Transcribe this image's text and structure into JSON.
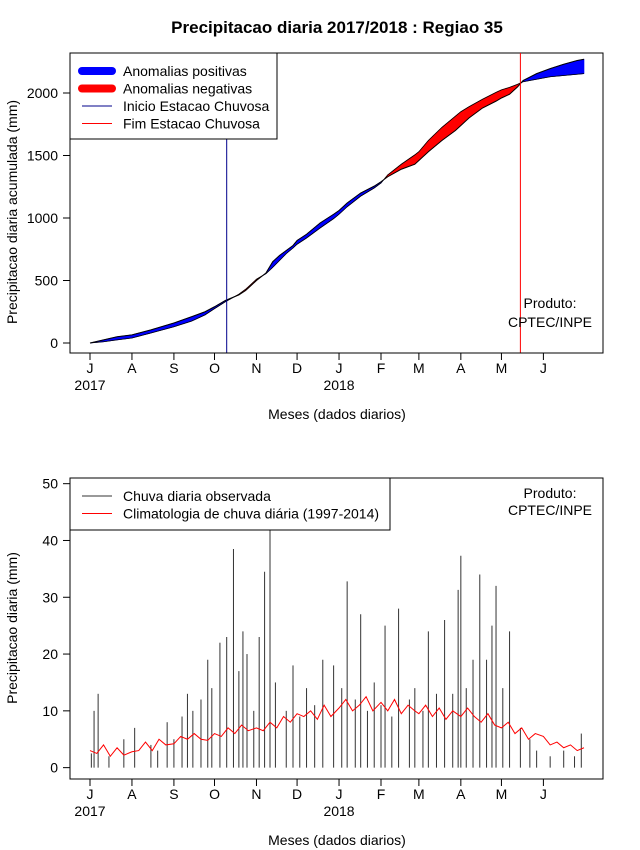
{
  "title": "Precipitacao diaria 2017/2018 : Regiao 35",
  "colors": {
    "positive": "#0000ff",
    "negative": "#ff0000",
    "start_line": "#00008b",
    "end_line": "#ff0000",
    "observed": "#333333",
    "climatology": "#ff0000"
  },
  "chart_data": [
    {
      "type": "area",
      "name": "accumulated",
      "ylabel": "Precipitacao diaria acumulada (mm)",
      "xlabel": "Meses (dados diarios)",
      "xlim": [
        0,
        365
      ],
      "ylim": [
        -80,
        2320
      ],
      "yticks": [
        0,
        500,
        1000,
        1500,
        2000
      ],
      "month_ticks": [
        {
          "label": "J",
          "day": 0
        },
        {
          "label": "A",
          "day": 31
        },
        {
          "label": "S",
          "day": 62
        },
        {
          "label": "O",
          "day": 92
        },
        {
          "label": "N",
          "day": 123
        },
        {
          "label": "D",
          "day": 153
        },
        {
          "label": "J",
          "day": 184
        },
        {
          "label": "F",
          "day": 215
        },
        {
          "label": "M",
          "day": 243
        },
        {
          "label": "A",
          "day": 274
        },
        {
          "label": "M",
          "day": 304
        },
        {
          "label": "J",
          "day": 335
        }
      ],
      "year_labels": [
        {
          "label": "2017",
          "day": 0
        },
        {
          "label": "2018",
          "day": 184
        }
      ],
      "legend": [
        {
          "label": "Anomalias positivas",
          "style": "thick",
          "color": "#0000ff"
        },
        {
          "label": "Anomalias negativas",
          "style": "thick",
          "color": "#ff0000"
        },
        {
          "label": "Inicio Estacao Chuvosa",
          "style": "thin",
          "color": "#00008b"
        },
        {
          "label": "Fim Estacao Chuvosa",
          "style": "thin",
          "color": "#ff0000"
        }
      ],
      "annotation": [
        "Produto:",
        "CPTEC/INPE"
      ],
      "season_start_day": 101,
      "season_end_day": 318,
      "observed": {
        "x": [
          0,
          10,
          20,
          31,
          45,
          62,
          75,
          85,
          92,
          100,
          110,
          115,
          120,
          123,
          130,
          135,
          140,
          145,
          150,
          153,
          160,
          170,
          180,
          184,
          190,
          200,
          210,
          215,
          220,
          230,
          240,
          243,
          250,
          260,
          270,
          274,
          280,
          290,
          300,
          304,
          310,
          316,
          320,
          330,
          335,
          340,
          350,
          360,
          365
        ],
        "y": [
          0,
          25,
          50,
          65,
          105,
          160,
          210,
          250,
          290,
          340,
          385,
          420,
          470,
          500,
          560,
          650,
          700,
          740,
          780,
          820,
          870,
          960,
          1030,
          1060,
          1120,
          1200,
          1255,
          1290,
          1330,
          1390,
          1430,
          1460,
          1530,
          1620,
          1700,
          1740,
          1800,
          1880,
          1935,
          1960,
          1990,
          2050,
          2100,
          2155,
          2175,
          2195,
          2230,
          2260,
          2270
        ]
      },
      "climatology": {
        "x": [
          0,
          10,
          20,
          31,
          45,
          62,
          75,
          85,
          92,
          100,
          110,
          115,
          120,
          123,
          130,
          135,
          140,
          145,
          150,
          153,
          160,
          170,
          180,
          184,
          190,
          200,
          210,
          215,
          220,
          230,
          240,
          243,
          250,
          260,
          270,
          274,
          280,
          290,
          300,
          304,
          310,
          316,
          320,
          330,
          335,
          340,
          350,
          360,
          365
        ],
        "y": [
          0,
          10,
          25,
          40,
          80,
          130,
          175,
          225,
          275,
          330,
          390,
          430,
          480,
          510,
          555,
          605,
          660,
          715,
          760,
          790,
          840,
          920,
          995,
          1030,
          1090,
          1175,
          1240,
          1280,
          1345,
          1430,
          1505,
          1530,
          1620,
          1725,
          1815,
          1850,
          1890,
          1950,
          2005,
          2025,
          2045,
          2070,
          2090,
          2110,
          2120,
          2130,
          2140,
          2150,
          2155
        ]
      }
    },
    {
      "type": "line",
      "name": "daily",
      "ylabel": "Precipitacao diaria (mm)",
      "xlabel": "Meses (dados diarios)",
      "xlim": [
        0,
        365
      ],
      "ylim": [
        -2,
        51
      ],
      "yticks": [
        0,
        10,
        20,
        30,
        40,
        50
      ],
      "month_ticks": [
        {
          "label": "J",
          "day": 0
        },
        {
          "label": "A",
          "day": 31
        },
        {
          "label": "S",
          "day": 62
        },
        {
          "label": "O",
          "day": 92
        },
        {
          "label": "N",
          "day": 123
        },
        {
          "label": "D",
          "day": 153
        },
        {
          "label": "J",
          "day": 184
        },
        {
          "label": "F",
          "day": 215
        },
        {
          "label": "M",
          "day": 243
        },
        {
          "label": "A",
          "day": 274
        },
        {
          "label": "M",
          "day": 304
        },
        {
          "label": "J",
          "day": 335
        }
      ],
      "year_labels": [
        {
          "label": "2017",
          "day": 0
        },
        {
          "label": "2018",
          "day": 184
        }
      ],
      "legend": [
        {
          "label": "Chuva diaria observada",
          "style": "thin",
          "color": "#333333"
        },
        {
          "label": "Climatologia de chuva diária (1997-2014)",
          "style": "thin",
          "color": "#ff0000"
        }
      ],
      "annotation": [
        "Produto:",
        "CPTEC/INPE"
      ],
      "observed_peaks": [
        {
          "day": 1,
          "value": 2.5
        },
        {
          "day": 3,
          "value": 10
        },
        {
          "day": 6,
          "value": 13
        },
        {
          "day": 14,
          "value": 2
        },
        {
          "day": 25,
          "value": 5
        },
        {
          "day": 33,
          "value": 7
        },
        {
          "day": 45,
          "value": 4
        },
        {
          "day": 50,
          "value": 3
        },
        {
          "day": 57,
          "value": 8
        },
        {
          "day": 62,
          "value": 5
        },
        {
          "day": 68,
          "value": 9
        },
        {
          "day": 72,
          "value": 13
        },
        {
          "day": 76,
          "value": 10
        },
        {
          "day": 82,
          "value": 12
        },
        {
          "day": 87,
          "value": 19
        },
        {
          "day": 90,
          "value": 14
        },
        {
          "day": 96,
          "value": 22
        },
        {
          "day": 101,
          "value": 23
        },
        {
          "day": 106,
          "value": 38.5
        },
        {
          "day": 110,
          "value": 17
        },
        {
          "day": 113,
          "value": 24
        },
        {
          "day": 116,
          "value": 20
        },
        {
          "day": 121,
          "value": 10
        },
        {
          "day": 125,
          "value": 23
        },
        {
          "day": 129,
          "value": 34.5
        },
        {
          "day": 133,
          "value": 42
        },
        {
          "day": 137,
          "value": 15
        },
        {
          "day": 145,
          "value": 10
        },
        {
          "day": 150,
          "value": 18
        },
        {
          "day": 155,
          "value": 9
        },
        {
          "day": 160,
          "value": 14
        },
        {
          "day": 166,
          "value": 11
        },
        {
          "day": 172,
          "value": 19
        },
        {
          "day": 180,
          "value": 18
        },
        {
          "day": 186,
          "value": 14
        },
        {
          "day": 190,
          "value": 32.8
        },
        {
          "day": 196,
          "value": 12
        },
        {
          "day": 200,
          "value": 27
        },
        {
          "day": 205,
          "value": 10
        },
        {
          "day": 210,
          "value": 15
        },
        {
          "day": 215,
          "value": 11
        },
        {
          "day": 218,
          "value": 25
        },
        {
          "day": 223,
          "value": 9
        },
        {
          "day": 228,
          "value": 28
        },
        {
          "day": 236,
          "value": 12
        },
        {
          "day": 240,
          "value": 14
        },
        {
          "day": 246,
          "value": 10
        },
        {
          "day": 250,
          "value": 24
        },
        {
          "day": 256,
          "value": 13
        },
        {
          "day": 262,
          "value": 26
        },
        {
          "day": 268,
          "value": 13
        },
        {
          "day": 272,
          "value": 31.3
        },
        {
          "day": 274,
          "value": 37.3
        },
        {
          "day": 278,
          "value": 14
        },
        {
          "day": 283,
          "value": 19
        },
        {
          "day": 288,
          "value": 34
        },
        {
          "day": 293,
          "value": 19
        },
        {
          "day": 297,
          "value": 25
        },
        {
          "day": 300,
          "value": 32
        },
        {
          "day": 305,
          "value": 14
        },
        {
          "day": 310,
          "value": 24
        },
        {
          "day": 318,
          "value": 7
        },
        {
          "day": 325,
          "value": 5
        },
        {
          "day": 330,
          "value": 3
        },
        {
          "day": 340,
          "value": 2
        },
        {
          "day": 350,
          "value": 3
        },
        {
          "day": 358,
          "value": 2
        },
        {
          "day": 363,
          "value": 6
        }
      ],
      "climatology": {
        "x": [
          0,
          5,
          10,
          15,
          20,
          25,
          31,
          36,
          41,
          46,
          51,
          56,
          62,
          67,
          72,
          77,
          82,
          87,
          92,
          97,
          102,
          107,
          112,
          117,
          123,
          128,
          133,
          138,
          143,
          148,
          153,
          158,
          163,
          168,
          173,
          178,
          184,
          189,
          194,
          199,
          204,
          209,
          215,
          220,
          225,
          230,
          235,
          240,
          243,
          248,
          253,
          258,
          263,
          268,
          274,
          279,
          284,
          289,
          294,
          299,
          304,
          309,
          314,
          319,
          324,
          329,
          335,
          340,
          345,
          350,
          355,
          360,
          365
        ],
        "y": [
          3,
          2.5,
          4,
          2,
          3.5,
          2.2,
          2.8,
          3,
          4.5,
          3,
          5,
          4,
          4.2,
          5.5,
          5,
          6,
          5,
          4.8,
          6,
          5.5,
          7,
          6,
          7.5,
          6.5,
          7,
          6.5,
          8,
          7,
          9,
          8,
          9.5,
          9,
          10,
          8.5,
          11,
          9,
          10.5,
          12,
          10,
          11,
          12.5,
          10,
          11.5,
          10,
          12,
          9.5,
          11,
          10,
          9.5,
          11,
          9,
          10.5,
          8.5,
          10,
          9,
          10.5,
          9,
          8,
          9.5,
          7.5,
          7,
          8,
          6,
          7,
          5,
          6,
          5.5,
          4,
          4.5,
          3.5,
          4,
          3,
          3.5
        ]
      }
    }
  ]
}
